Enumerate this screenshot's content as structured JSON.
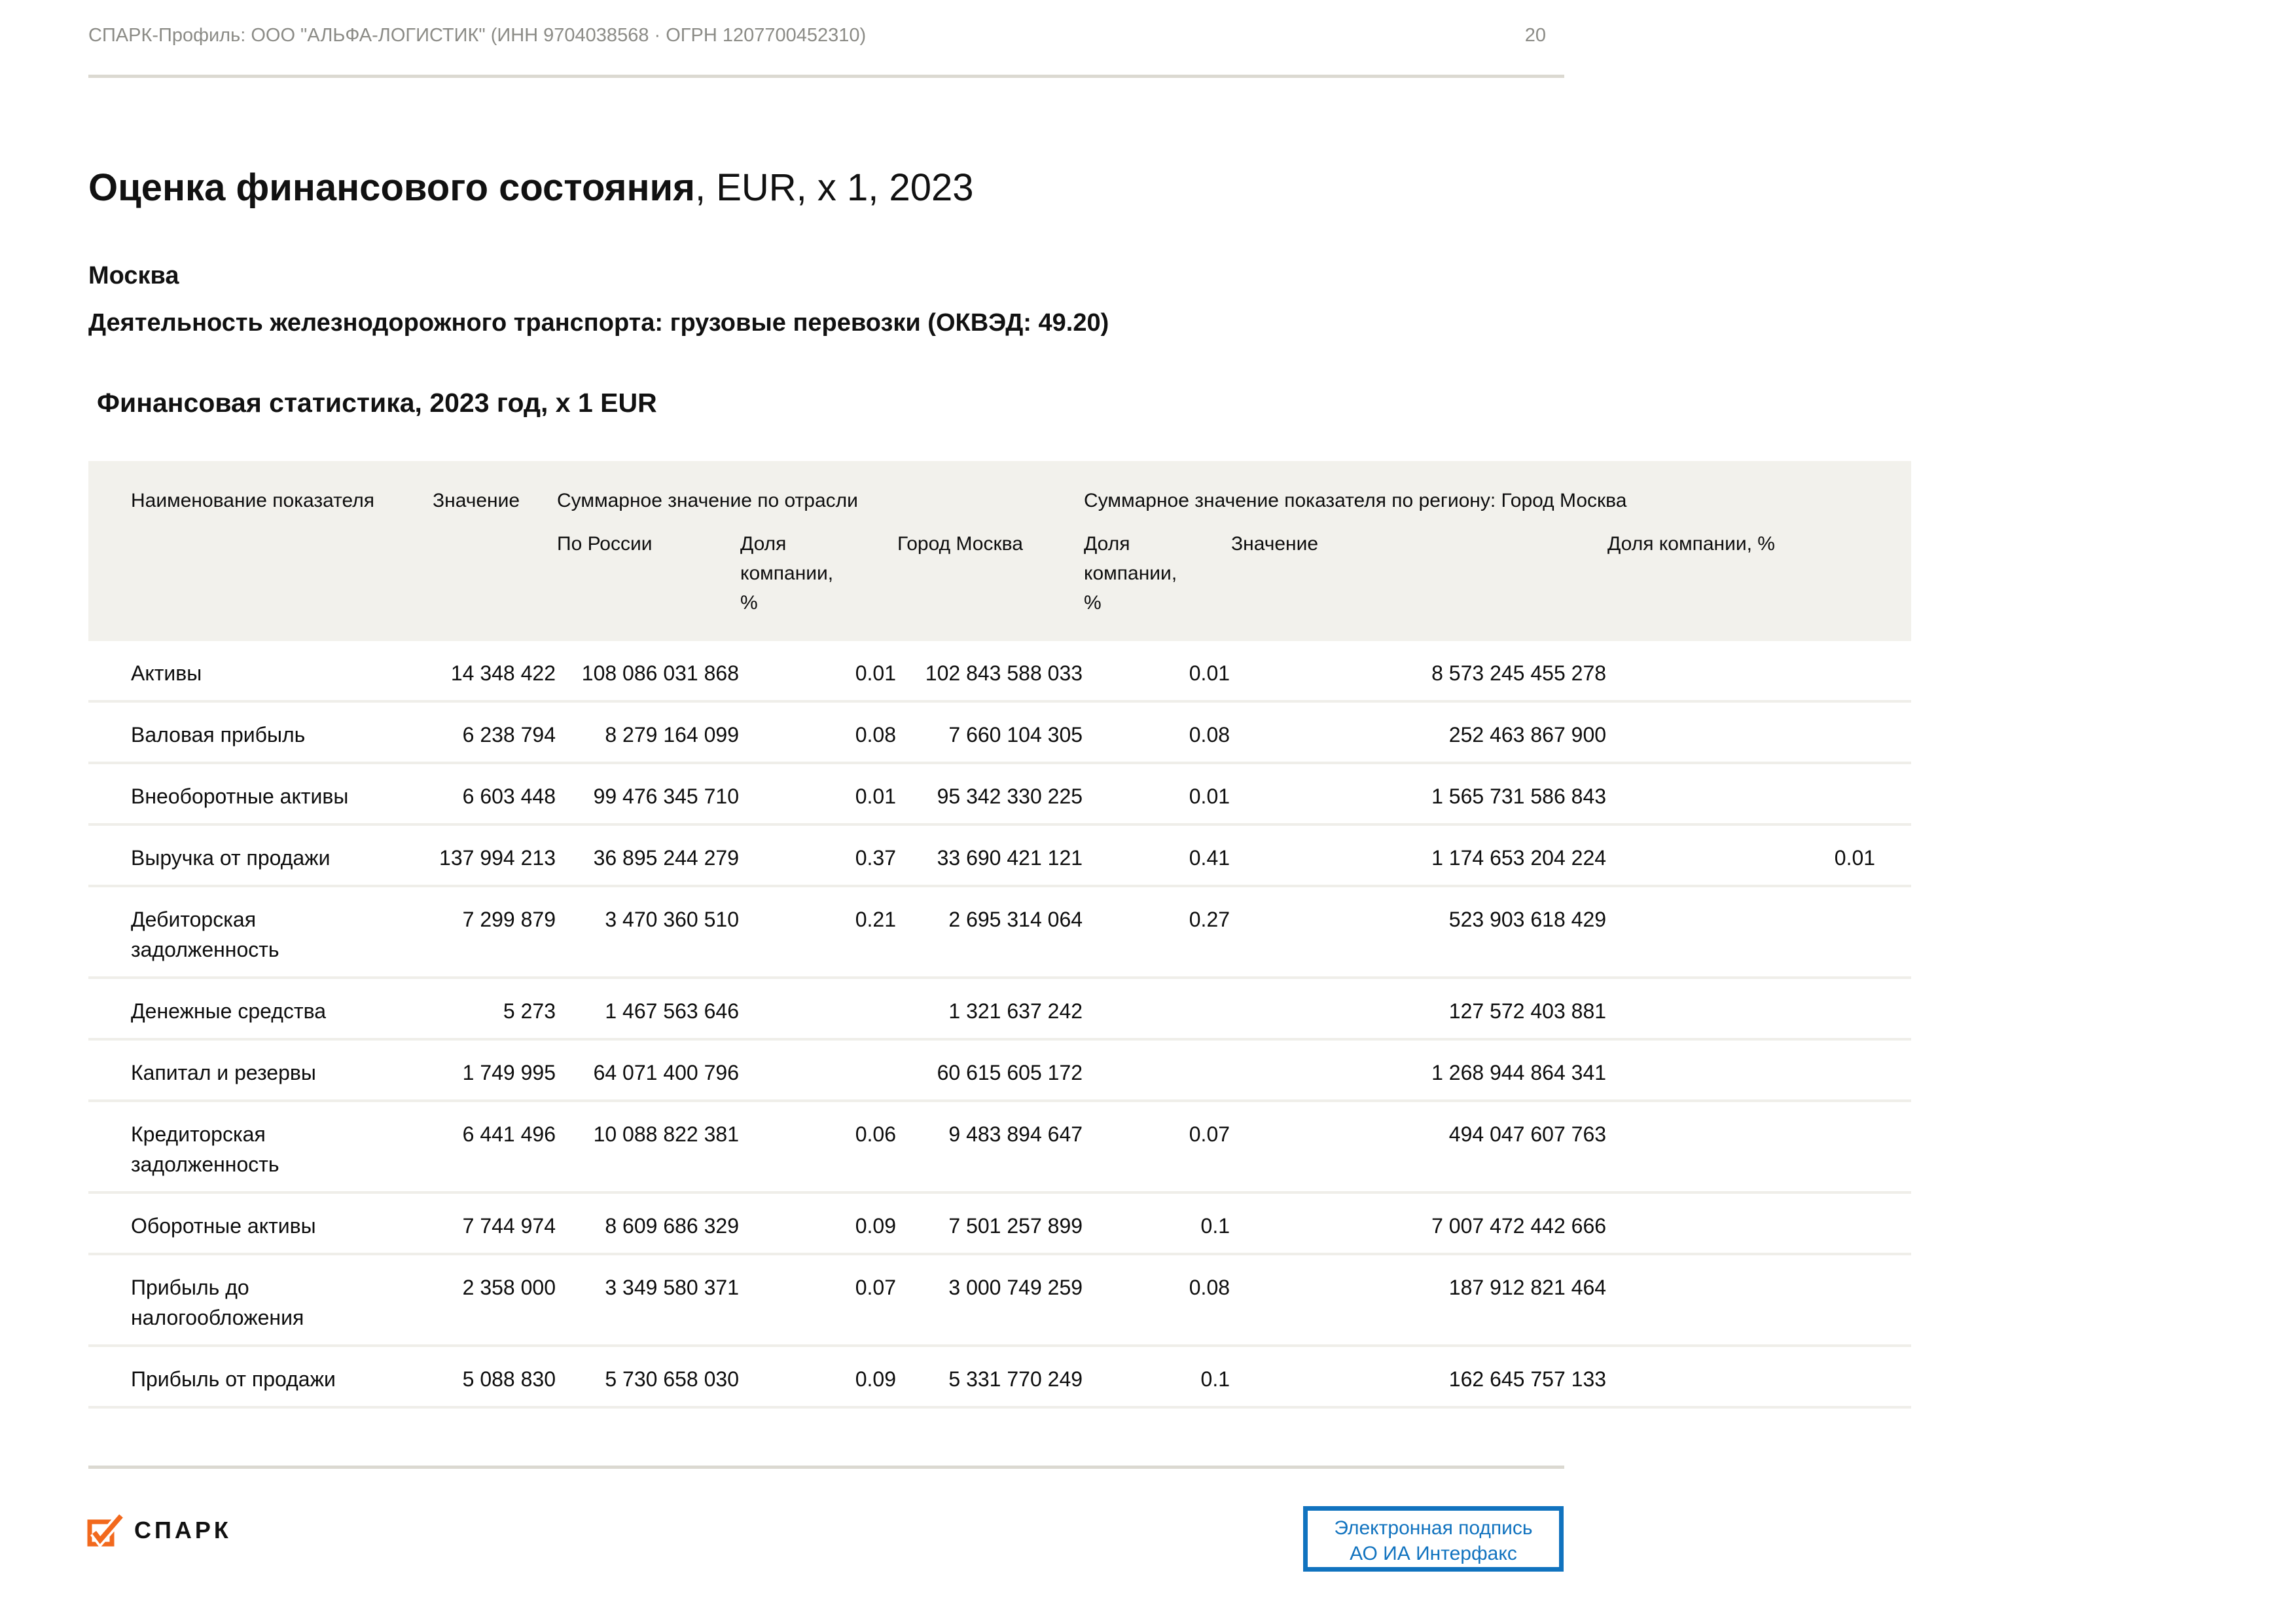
{
  "header": {
    "left": "СПАРК-Профиль: ООО \"АЛЬФА-ЛОГИСТИК\" (ИНН 9704038568 · ОГРН 1207700452310)",
    "page_number": "20"
  },
  "title": {
    "main": "Оценка финансового состояния",
    "suffix": ", EUR, x 1, 2023"
  },
  "subtitle_region": "Москва",
  "subtitle_activity": "Деятельность железнодорожного транспорта: грузовые перевозки (ОКВЭД: 49.20)",
  "section_title": "Финансовая статистика, 2023 год, x 1 EUR",
  "table": {
    "group_headers": {
      "col_name": "Наименование показателя",
      "col_value": "Значение",
      "industry": "Суммарное значение по отрасли",
      "region": "Суммарное значение показателя по региону: Город Москва"
    },
    "sub_headers": {
      "russia": "По России",
      "industry_share": "Доля компании, %",
      "moscow": "Город Москва",
      "moscow_share": "Доля компании, %",
      "region_value": "Значение",
      "region_share": "Доля компании, %"
    },
    "rows": [
      {
        "name": "Активы",
        "value": "14 348 422",
        "russia": "108 086 031 868",
        "industry_share": "0.01",
        "moscow": "102 843 588 033",
        "moscow_share": "0.01",
        "region_value": "8 573 245 455 278",
        "region_share": ""
      },
      {
        "name": "Валовая прибыль",
        "value": "6 238 794",
        "russia": "8 279 164 099",
        "industry_share": "0.08",
        "moscow": "7 660 104 305",
        "moscow_share": "0.08",
        "region_value": "252 463 867 900",
        "region_share": ""
      },
      {
        "name": "Внеоборотные активы",
        "value": "6 603 448",
        "russia": "99 476 345 710",
        "industry_share": "0.01",
        "moscow": "95 342 330 225",
        "moscow_share": "0.01",
        "region_value": "1 565 731 586 843",
        "region_share": ""
      },
      {
        "name": "Выручка от продажи",
        "value": "137 994 213",
        "russia": "36 895 244 279",
        "industry_share": "0.37",
        "moscow": "33 690 421 121",
        "moscow_share": "0.41",
        "region_value": "1 174 653 204 224",
        "region_share": "0.01"
      },
      {
        "name": "Дебиторская задолженность",
        "value": "7 299 879",
        "russia": "3 470 360 510",
        "industry_share": "0.21",
        "moscow": "2 695 314 064",
        "moscow_share": "0.27",
        "region_value": "523 903 618 429",
        "region_share": ""
      },
      {
        "name": "Денежные средства",
        "value": "5 273",
        "russia": "1 467 563 646",
        "industry_share": "",
        "moscow": "1 321 637 242",
        "moscow_share": "",
        "region_value": "127 572 403 881",
        "region_share": ""
      },
      {
        "name": "Капитал и резервы",
        "value": "1 749 995",
        "russia": "64 071 400 796",
        "industry_share": "",
        "moscow": "60 615 605 172",
        "moscow_share": "",
        "region_value": "1 268 944 864 341",
        "region_share": ""
      },
      {
        "name": "Кредиторская задолженность",
        "value": "6 441 496",
        "russia": "10 088 822 381",
        "industry_share": "0.06",
        "moscow": "9 483 894 647",
        "moscow_share": "0.07",
        "region_value": "494 047 607 763",
        "region_share": ""
      },
      {
        "name": "Оборотные активы",
        "value": "7 744 974",
        "russia": "8 609 686 329",
        "industry_share": "0.09",
        "moscow": "7 501 257 899",
        "moscow_share": "0.1",
        "region_value": "7 007 472 442 666",
        "region_share": ""
      },
      {
        "name": "Прибыль до налогообложения",
        "value": "2 358 000",
        "russia": "3 349 580 371",
        "industry_share": "0.07",
        "moscow": "3 000 749 259",
        "moscow_share": "0.08",
        "region_value": "187 912 821 464",
        "region_share": ""
      },
      {
        "name": "Прибыль от продажи",
        "value": "5 088 830",
        "russia": "5 730 658 030",
        "industry_share": "0.09",
        "moscow": "5 331 770 249",
        "moscow_share": "0.1",
        "region_value": "162 645 757 133",
        "region_share": ""
      }
    ]
  },
  "footer": {
    "logo_text": "СПАРК",
    "stamp_line1": "Электронная подпись",
    "stamp_line2": "АО ИА Интерфакс"
  },
  "colors": {
    "accent_orange": "#f2691d",
    "stamp_blue": "#1173bf",
    "table_header_bg": "#f2f1ec",
    "row_divider": "#efeee9",
    "muted_text": "#8b8b86"
  }
}
